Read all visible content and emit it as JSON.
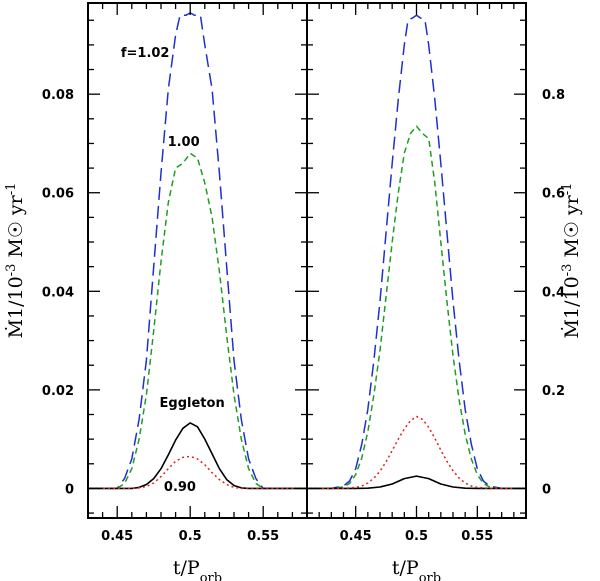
{
  "chart_data": [
    {
      "type": "line",
      "panel": "left",
      "xlabel": "t/P_orb",
      "ylabel": "Ṁ1/10^-3 M☉ yr^-1",
      "xlim": [
        0.43,
        0.58
      ],
      "ylim": [
        -0.006,
        0.0985
      ],
      "xticks": [
        0.45,
        0.5,
        0.55
      ],
      "xtick_labels": [
        "0.45",
        "0.5",
        "0.55"
      ],
      "yticks": [
        0,
        0.02,
        0.04,
        0.06,
        0.08
      ],
      "ytick_labels": [
        "0",
        "0.02",
        "0.04",
        "0.06",
        "0.08"
      ],
      "series": [
        {
          "name": "f=1.02",
          "color": "#1f2fd0",
          "dash": "long",
          "x": [
            0.43,
            0.44,
            0.45,
            0.455,
            0.46,
            0.465,
            0.47,
            0.475,
            0.48,
            0.485,
            0.49,
            0.493,
            0.497,
            0.5,
            0.503,
            0.507,
            0.51,
            0.515,
            0.52,
            0.525,
            0.53,
            0.535,
            0.54,
            0.545,
            0.55,
            0.56,
            0.57,
            0.58
          ],
          "y": [
            0,
            0,
            0,
            0.002,
            0.006,
            0.014,
            0.026,
            0.045,
            0.064,
            0.081,
            0.092,
            0.096,
            0.096,
            0.0965,
            0.096,
            0.096,
            0.09,
            0.081,
            0.064,
            0.045,
            0.026,
            0.014,
            0.006,
            0.002,
            0,
            0,
            0,
            0
          ]
        },
        {
          "name": "1.00",
          "color": "#1f9e1f",
          "dash": "short",
          "x": [
            0.43,
            0.44,
            0.45,
            0.455,
            0.46,
            0.465,
            0.47,
            0.475,
            0.48,
            0.485,
            0.49,
            0.495,
            0.5,
            0.505,
            0.51,
            0.515,
            0.52,
            0.525,
            0.53,
            0.535,
            0.54,
            0.545,
            0.55,
            0.56,
            0.57,
            0.58
          ],
          "y": [
            0,
            0,
            0,
            0.001,
            0.004,
            0.01,
            0.019,
            0.032,
            0.046,
            0.058,
            0.065,
            0.066,
            0.068,
            0.067,
            0.062,
            0.055,
            0.044,
            0.031,
            0.019,
            0.01,
            0.004,
            0.001,
            0,
            0,
            0,
            0
          ]
        },
        {
          "name": "Eggleton",
          "color": "#000000",
          "dash": "solid",
          "x": [
            0.43,
            0.45,
            0.46,
            0.465,
            0.47,
            0.475,
            0.48,
            0.485,
            0.49,
            0.495,
            0.5,
            0.505,
            0.51,
            0.515,
            0.52,
            0.525,
            0.53,
            0.535,
            0.54,
            0.55,
            0.58
          ],
          "y": [
            0,
            0,
            0,
            0.0002,
            0.0008,
            0.002,
            0.004,
            0.0068,
            0.0098,
            0.0122,
            0.0133,
            0.0125,
            0.01,
            0.007,
            0.004,
            0.0018,
            0.0006,
            0.0001,
            0,
            0,
            0
          ]
        },
        {
          "name": "0.90",
          "color": "#e0201a",
          "dash": "dotted",
          "x": [
            0.43,
            0.45,
            0.46,
            0.465,
            0.47,
            0.475,
            0.48,
            0.485,
            0.49,
            0.495,
            0.5,
            0.505,
            0.51,
            0.515,
            0.52,
            0.525,
            0.53,
            0.535,
            0.54,
            0.55,
            0.58
          ],
          "y": [
            0,
            0,
            0,
            0.0001,
            0.0004,
            0.0011,
            0.0024,
            0.004,
            0.0055,
            0.0063,
            0.0065,
            0.006,
            0.0048,
            0.0032,
            0.0018,
            0.0008,
            0.0002,
            0,
            0,
            0,
            0
          ]
        }
      ],
      "annotations": [
        {
          "text": "f=1.02",
          "x": 0.4525,
          "y": 0.0875
        },
        {
          "text": "1.00",
          "x": 0.4845,
          "y": 0.0695
        },
        {
          "text": "Eggleton",
          "x": 0.479,
          "y": 0.0165
        },
        {
          "text": "0.90",
          "x": 0.482,
          "y": -0.0005
        }
      ]
    },
    {
      "type": "line",
      "panel": "right",
      "xlabel": "t/P_orb",
      "ylabel": "Ṁ1/10^-3 M☉ yr^-1",
      "xlim": [
        0.41,
        0.59
      ],
      "ylim": [
        -0.06,
        0.985
      ],
      "xticks": [
        0.45,
        0.5,
        0.55
      ],
      "xtick_labels": [
        "0.45",
        "0.5",
        "0.55"
      ],
      "yticks": [
        0,
        0.2,
        0.4,
        0.6,
        0.8
      ],
      "ytick_labels": [
        "0",
        "0.2",
        "0.4",
        "0.6",
        "0.8"
      ],
      "series": [
        {
          "name": "f=1.02",
          "color": "#1f2fd0",
          "dash": "long",
          "x": [
            0.41,
            0.43,
            0.44,
            0.445,
            0.45,
            0.455,
            0.46,
            0.465,
            0.47,
            0.475,
            0.48,
            0.485,
            0.49,
            0.493,
            0.497,
            0.5,
            0.503,
            0.507,
            0.51,
            0.515,
            0.52,
            0.525,
            0.53,
            0.535,
            0.54,
            0.545,
            0.55,
            0.555,
            0.56,
            0.57,
            0.59
          ],
          "y": [
            0,
            0,
            0.005,
            0.015,
            0.04,
            0.09,
            0.16,
            0.26,
            0.38,
            0.52,
            0.66,
            0.79,
            0.9,
            0.95,
            0.955,
            0.96,
            0.955,
            0.95,
            0.9,
            0.79,
            0.66,
            0.52,
            0.38,
            0.26,
            0.16,
            0.09,
            0.04,
            0.015,
            0.005,
            0,
            0
          ]
        },
        {
          "name": "1.00",
          "color": "#1f9e1f",
          "dash": "short",
          "x": [
            0.41,
            0.43,
            0.44,
            0.445,
            0.45,
            0.455,
            0.46,
            0.465,
            0.47,
            0.475,
            0.48,
            0.485,
            0.49,
            0.495,
            0.5,
            0.505,
            0.51,
            0.515,
            0.52,
            0.525,
            0.53,
            0.535,
            0.54,
            0.545,
            0.55,
            0.555,
            0.56,
            0.57,
            0.59
          ],
          "y": [
            0,
            0,
            0.003,
            0.01,
            0.028,
            0.062,
            0.115,
            0.19,
            0.28,
            0.39,
            0.5,
            0.6,
            0.68,
            0.72,
            0.735,
            0.72,
            0.71,
            0.62,
            0.5,
            0.38,
            0.27,
            0.18,
            0.11,
            0.06,
            0.028,
            0.01,
            0.003,
            0,
            0
          ]
        },
        {
          "name": "Eggleton",
          "color": "#000000",
          "dash": "solid",
          "x": [
            0.41,
            0.45,
            0.46,
            0.47,
            0.48,
            0.49,
            0.5,
            0.51,
            0.52,
            0.53,
            0.54,
            0.55,
            0.59
          ],
          "y": [
            0,
            0,
            0.0005,
            0.003,
            0.009,
            0.02,
            0.025,
            0.02,
            0.009,
            0.003,
            0.0005,
            0,
            0
          ]
        },
        {
          "name": "0.90",
          "color": "#e0201a",
          "dash": "dotted",
          "x": [
            0.41,
            0.44,
            0.45,
            0.455,
            0.46,
            0.465,
            0.47,
            0.475,
            0.48,
            0.485,
            0.49,
            0.495,
            0.5,
            0.505,
            0.51,
            0.515,
            0.52,
            0.525,
            0.53,
            0.535,
            0.54,
            0.545,
            0.55,
            0.56,
            0.59
          ],
          "y": [
            0,
            0,
            0.002,
            0.005,
            0.011,
            0.021,
            0.035,
            0.054,
            0.077,
            0.1,
            0.121,
            0.137,
            0.146,
            0.14,
            0.124,
            0.102,
            0.078,
            0.055,
            0.036,
            0.021,
            0.011,
            0.005,
            0.002,
            0,
            0
          ]
        }
      ],
      "annotations": []
    }
  ]
}
